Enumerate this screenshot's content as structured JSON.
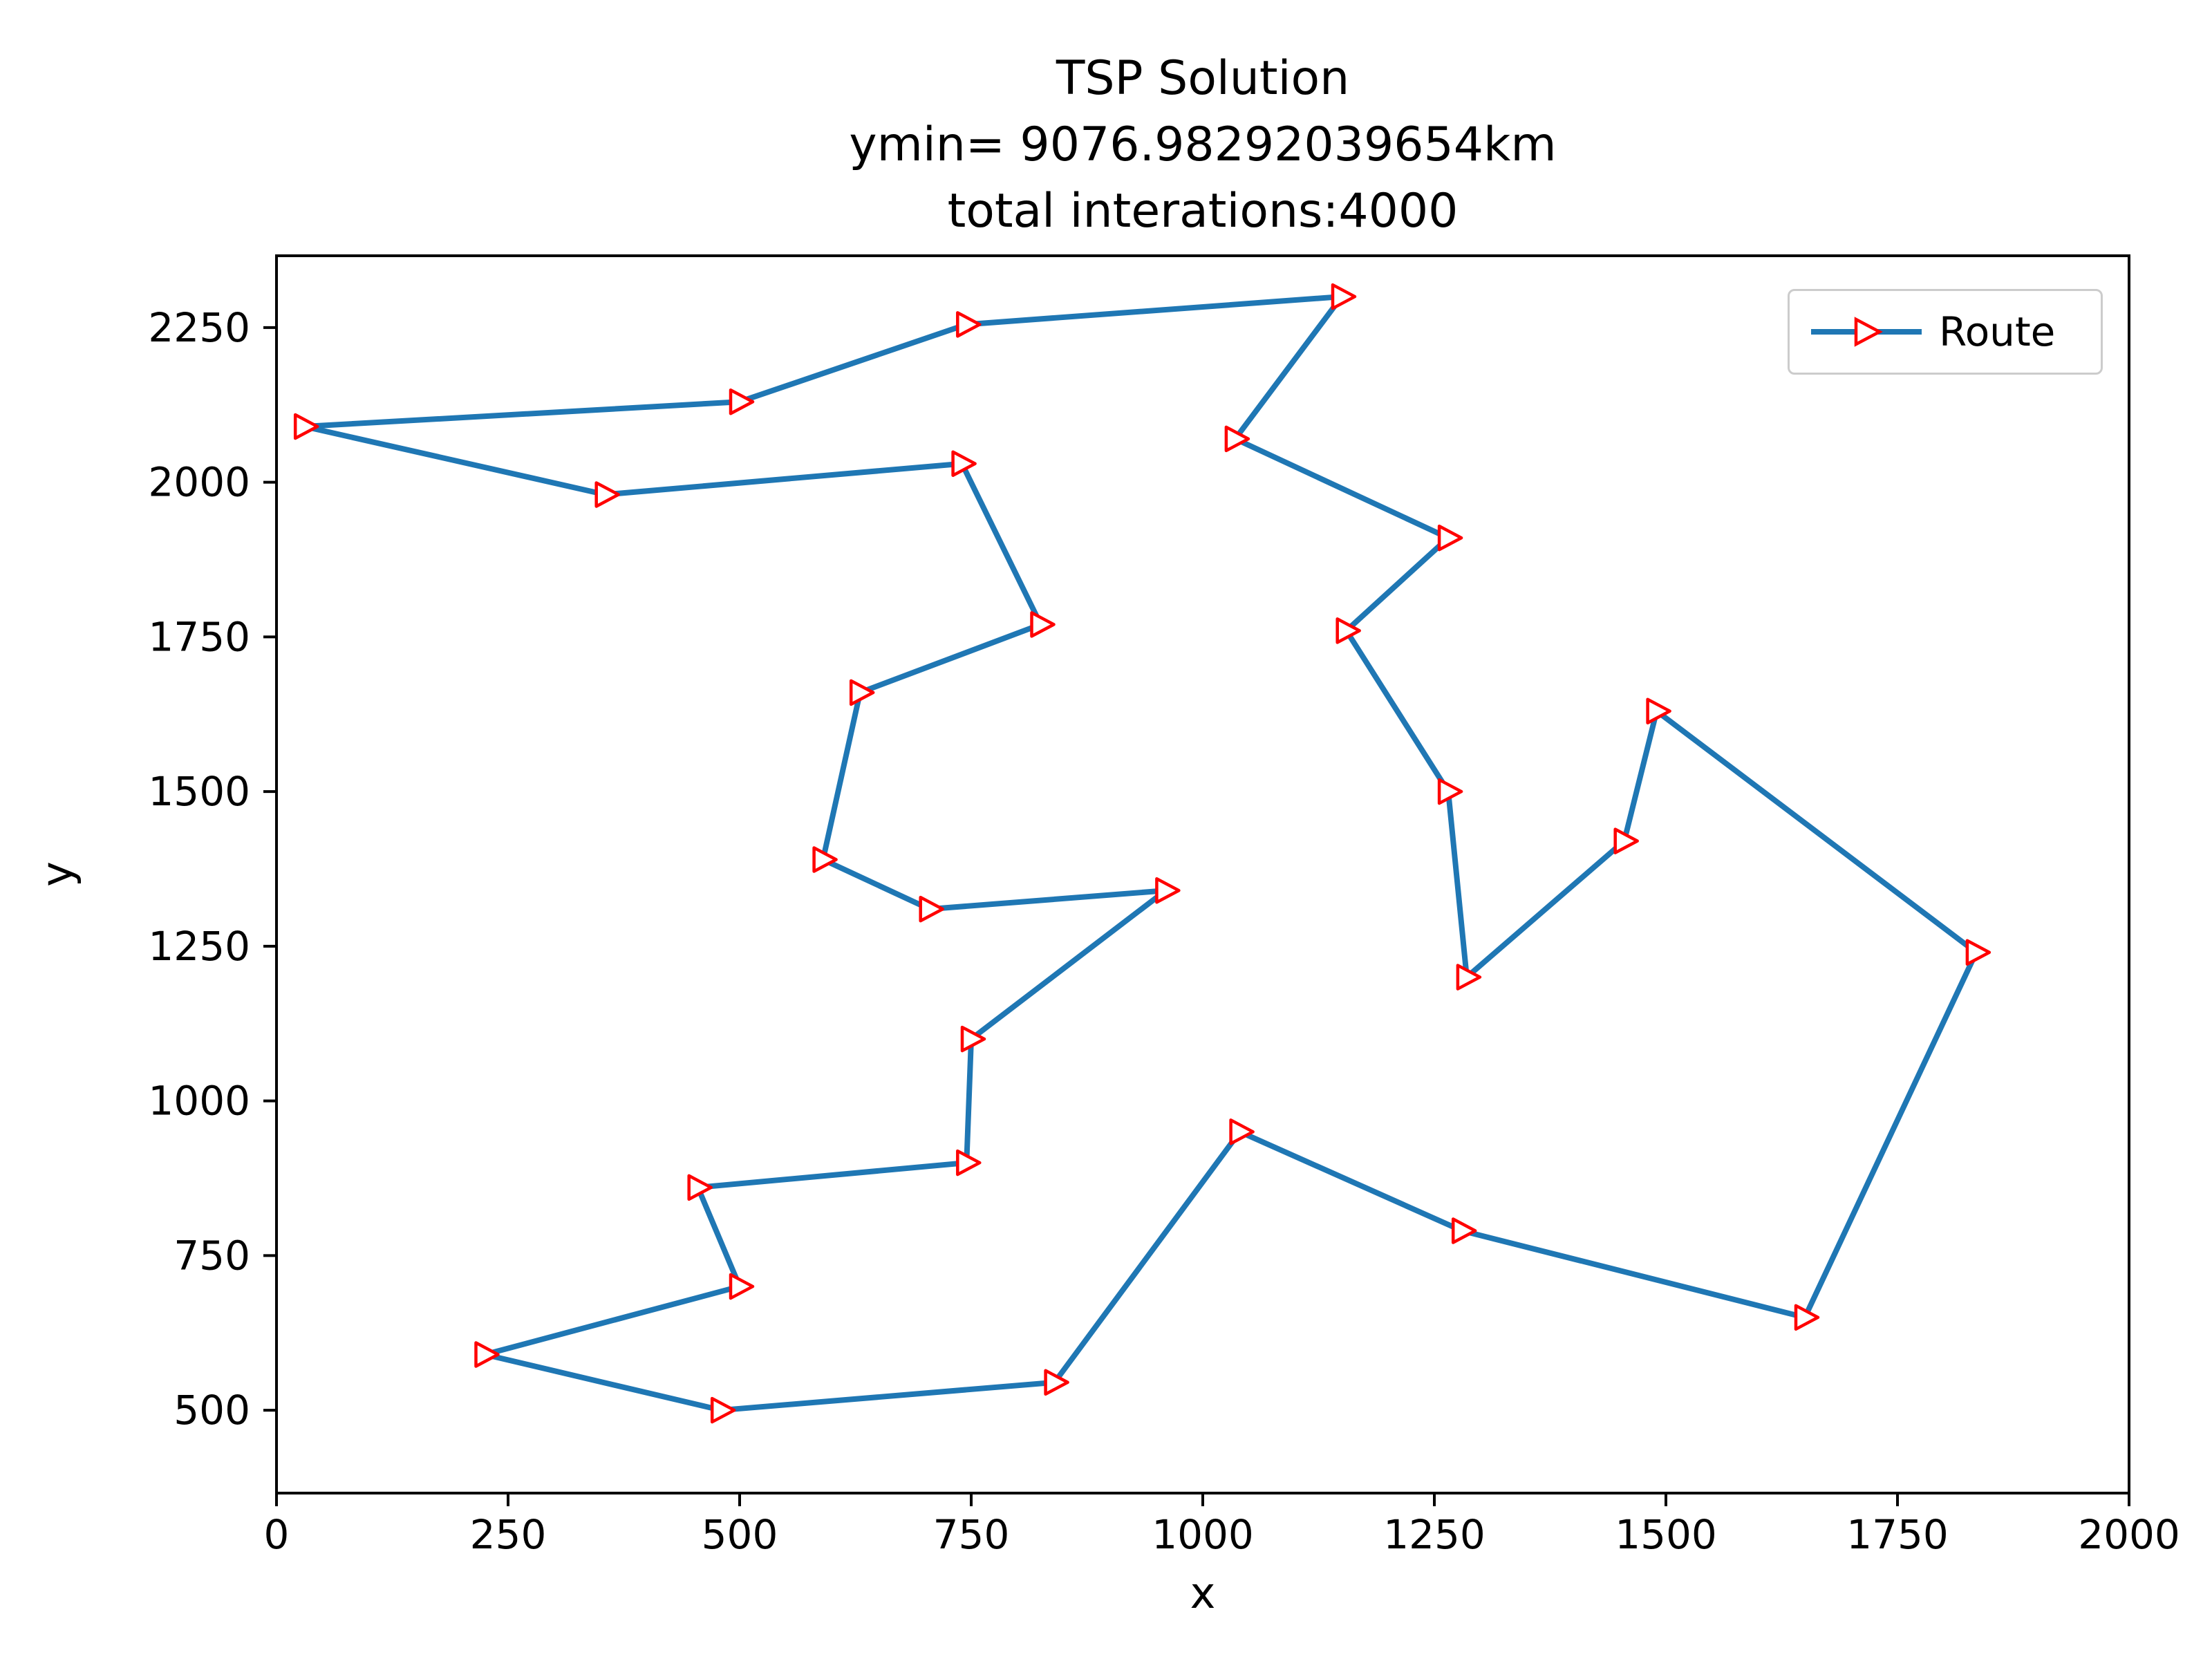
{
  "chart_data": {
    "type": "line",
    "title_lines": [
      "TSP Solution",
      "ymin= 9076.98292039654km",
      "total interations:4000"
    ],
    "xlabel": "x",
    "ylabel": "y",
    "legend_label": "Route",
    "legend_position": "upper right",
    "xlim": [
      0,
      2000
    ],
    "ylim": [
      366,
      2366
    ],
    "xticks": [
      0,
      250,
      500,
      750,
      1000,
      1250,
      1500,
      1750,
      2000
    ],
    "yticks": [
      500,
      750,
      1000,
      1250,
      1500,
      1750,
      2000,
      2250
    ],
    "line_color": "#1f77b4",
    "marker": {
      "shape": "triangle-right",
      "edge_color": "#ff0000",
      "face_color": "#ffffff"
    },
    "closed": true,
    "route": [
      [
        30,
        2090
      ],
      [
        500,
        2130
      ],
      [
        745,
        2255
      ],
      [
        1150,
        2300
      ],
      [
        1035,
        2070
      ],
      [
        1265,
        1910
      ],
      [
        1155,
        1760
      ],
      [
        1265,
        1500
      ],
      [
        1285,
        1200
      ],
      [
        1455,
        1420
      ],
      [
        1490,
        1630
      ],
      [
        1835,
        1240
      ],
      [
        1650,
        650
      ],
      [
        1280,
        790
      ],
      [
        1040,
        950
      ],
      [
        840,
        545
      ],
      [
        480,
        500
      ],
      [
        225,
        590
      ],
      [
        500,
        700
      ],
      [
        455,
        860
      ],
      [
        745,
        900
      ],
      [
        750,
        1100
      ],
      [
        960,
        1340
      ],
      [
        705,
        1310
      ],
      [
        590,
        1390
      ],
      [
        630,
        1660
      ],
      [
        825,
        1770
      ],
      [
        740,
        2030
      ],
      [
        355,
        1980
      ]
    ]
  }
}
